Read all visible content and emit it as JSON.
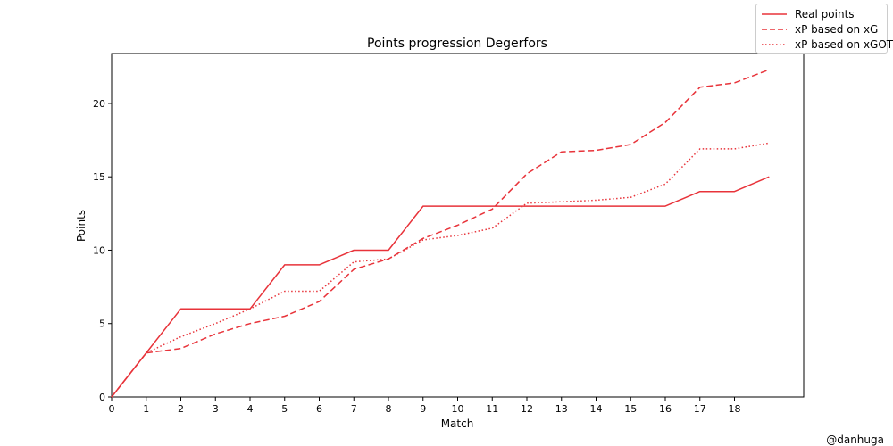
{
  "credit": "@danhuga",
  "chart_data": {
    "type": "line",
    "title": "Points progression Degerfors",
    "xlabel": "Match",
    "ylabel": "Points",
    "xlim": [
      0,
      20
    ],
    "ylim": [
      0,
      23.4
    ],
    "xticks": [
      0,
      1,
      2,
      3,
      4,
      5,
      6,
      7,
      8,
      9,
      10,
      11,
      12,
      13,
      14,
      15,
      16,
      17,
      18
    ],
    "yticks": [
      0,
      5,
      10,
      15,
      20
    ],
    "grid": false,
    "legend_position": "top-right",
    "x": [
      0,
      1,
      2,
      3,
      4,
      5,
      6,
      7,
      8,
      9,
      10,
      11,
      12,
      13,
      14,
      15,
      16,
      17,
      18,
      19
    ],
    "series": [
      {
        "name": "Real points",
        "style": "solid",
        "color": "#e8333a",
        "values": [
          0,
          3,
          6,
          6,
          6,
          9,
          9,
          10,
          10,
          13,
          13,
          13,
          13,
          13,
          13,
          13,
          13,
          14,
          14,
          15
        ]
      },
      {
        "name": "xP based on xG",
        "style": "dashed",
        "color": "#e8333a",
        "values": [
          0,
          3.0,
          3.3,
          4.3,
          5.0,
          5.5,
          6.5,
          8.7,
          9.4,
          10.8,
          11.7,
          12.8,
          15.2,
          16.7,
          16.8,
          17.2,
          18.7,
          21.1,
          21.4,
          22.3
        ]
      },
      {
        "name": "xP based on xGOT",
        "style": "dotted",
        "color": "#e8333a",
        "values": [
          0,
          3.0,
          4.1,
          5.0,
          6.0,
          7.2,
          7.2,
          9.2,
          9.4,
          10.7,
          11.0,
          11.5,
          13.2,
          13.3,
          13.4,
          13.6,
          14.5,
          16.9,
          16.9,
          17.3
        ]
      }
    ]
  }
}
